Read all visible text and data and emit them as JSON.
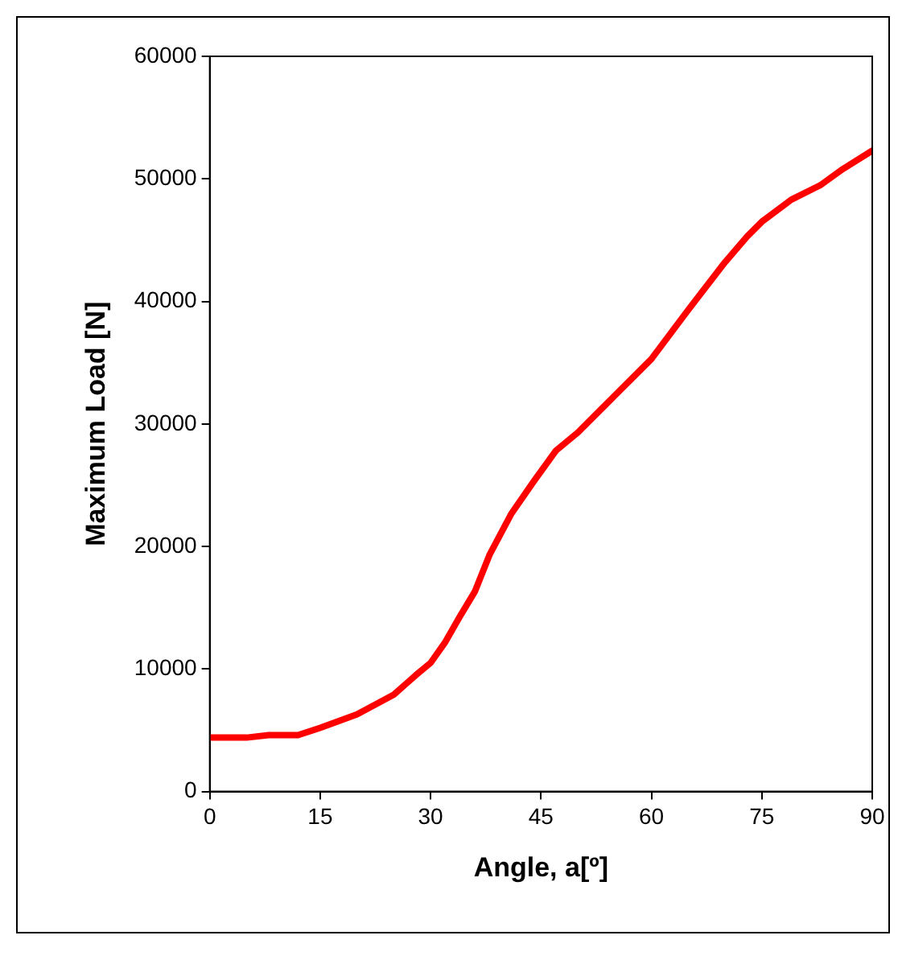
{
  "chart_data": {
    "type": "line",
    "xlabel": "Angle, a[º]",
    "ylabel": "Maximum Load [N]",
    "x": [
      0,
      5,
      8,
      12,
      15,
      20,
      25,
      28,
      30,
      32,
      34,
      36,
      38,
      41,
      44,
      47,
      50,
      55,
      60,
      65,
      70,
      73,
      75,
      79,
      83,
      86,
      90
    ],
    "series": [
      {
        "color": "#ff0000",
        "values": [
          4400,
          4400,
          4600,
          4600,
          5200,
          6300,
          7900,
          9500,
          10500,
          12200,
          14300,
          16300,
          19300,
          22700,
          25300,
          27800,
          29300,
          32300,
          35300,
          39300,
          43200,
          45300,
          46500,
          48300,
          49500,
          50800,
          52300
        ]
      }
    ],
    "xlim": [
      0,
      90
    ],
    "xticks": [
      0,
      15,
      30,
      45,
      60,
      75,
      90
    ],
    "ylim": [
      0,
      60000
    ],
    "yticks": [
      0,
      10000,
      20000,
      30000,
      40000,
      50000,
      60000
    ],
    "grid": false,
    "legend": false,
    "marker": "none",
    "line_style": "solid"
  }
}
